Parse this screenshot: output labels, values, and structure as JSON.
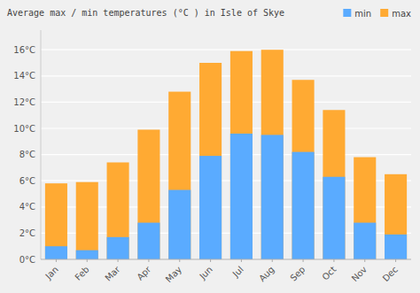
{
  "chart_data": {
    "type": "bar",
    "title": "Average max / min temperatures (°C ) in Isle of Skye",
    "categories": [
      "Jan",
      "Feb",
      "Mar",
      "Apr",
      "May",
      "Jun",
      "Jul",
      "Aug",
      "Sep",
      "Oct",
      "Nov",
      "Dec"
    ],
    "series": [
      {
        "name": "max",
        "color": "#ffaa33",
        "values": [
          5.8,
          5.9,
          7.4,
          9.9,
          12.8,
          15.0,
          15.9,
          16.0,
          13.7,
          11.4,
          7.8,
          6.5
        ]
      },
      {
        "name": "min",
        "color": "#5aabff",
        "values": [
          1.0,
          0.7,
          1.7,
          2.8,
          5.3,
          7.9,
          9.6,
          9.5,
          8.2,
          6.3,
          2.8,
          1.9
        ]
      }
    ],
    "ylim": [
      0,
      17.5
    ],
    "yticks": [
      {
        "value": 0,
        "label": "0°C"
      },
      {
        "value": 2,
        "label": "2°C"
      },
      {
        "value": 4,
        "label": "4°C"
      },
      {
        "value": 6,
        "label": "6°C"
      },
      {
        "value": 8,
        "label": "8°C"
      },
      {
        "value": 10,
        "label": "10°C"
      },
      {
        "value": 12,
        "label": "12°C"
      },
      {
        "value": 14,
        "label": "14°C"
      },
      {
        "value": 16,
        "label": "16°C"
      }
    ],
    "grid": true,
    "legend": "top-right"
  }
}
